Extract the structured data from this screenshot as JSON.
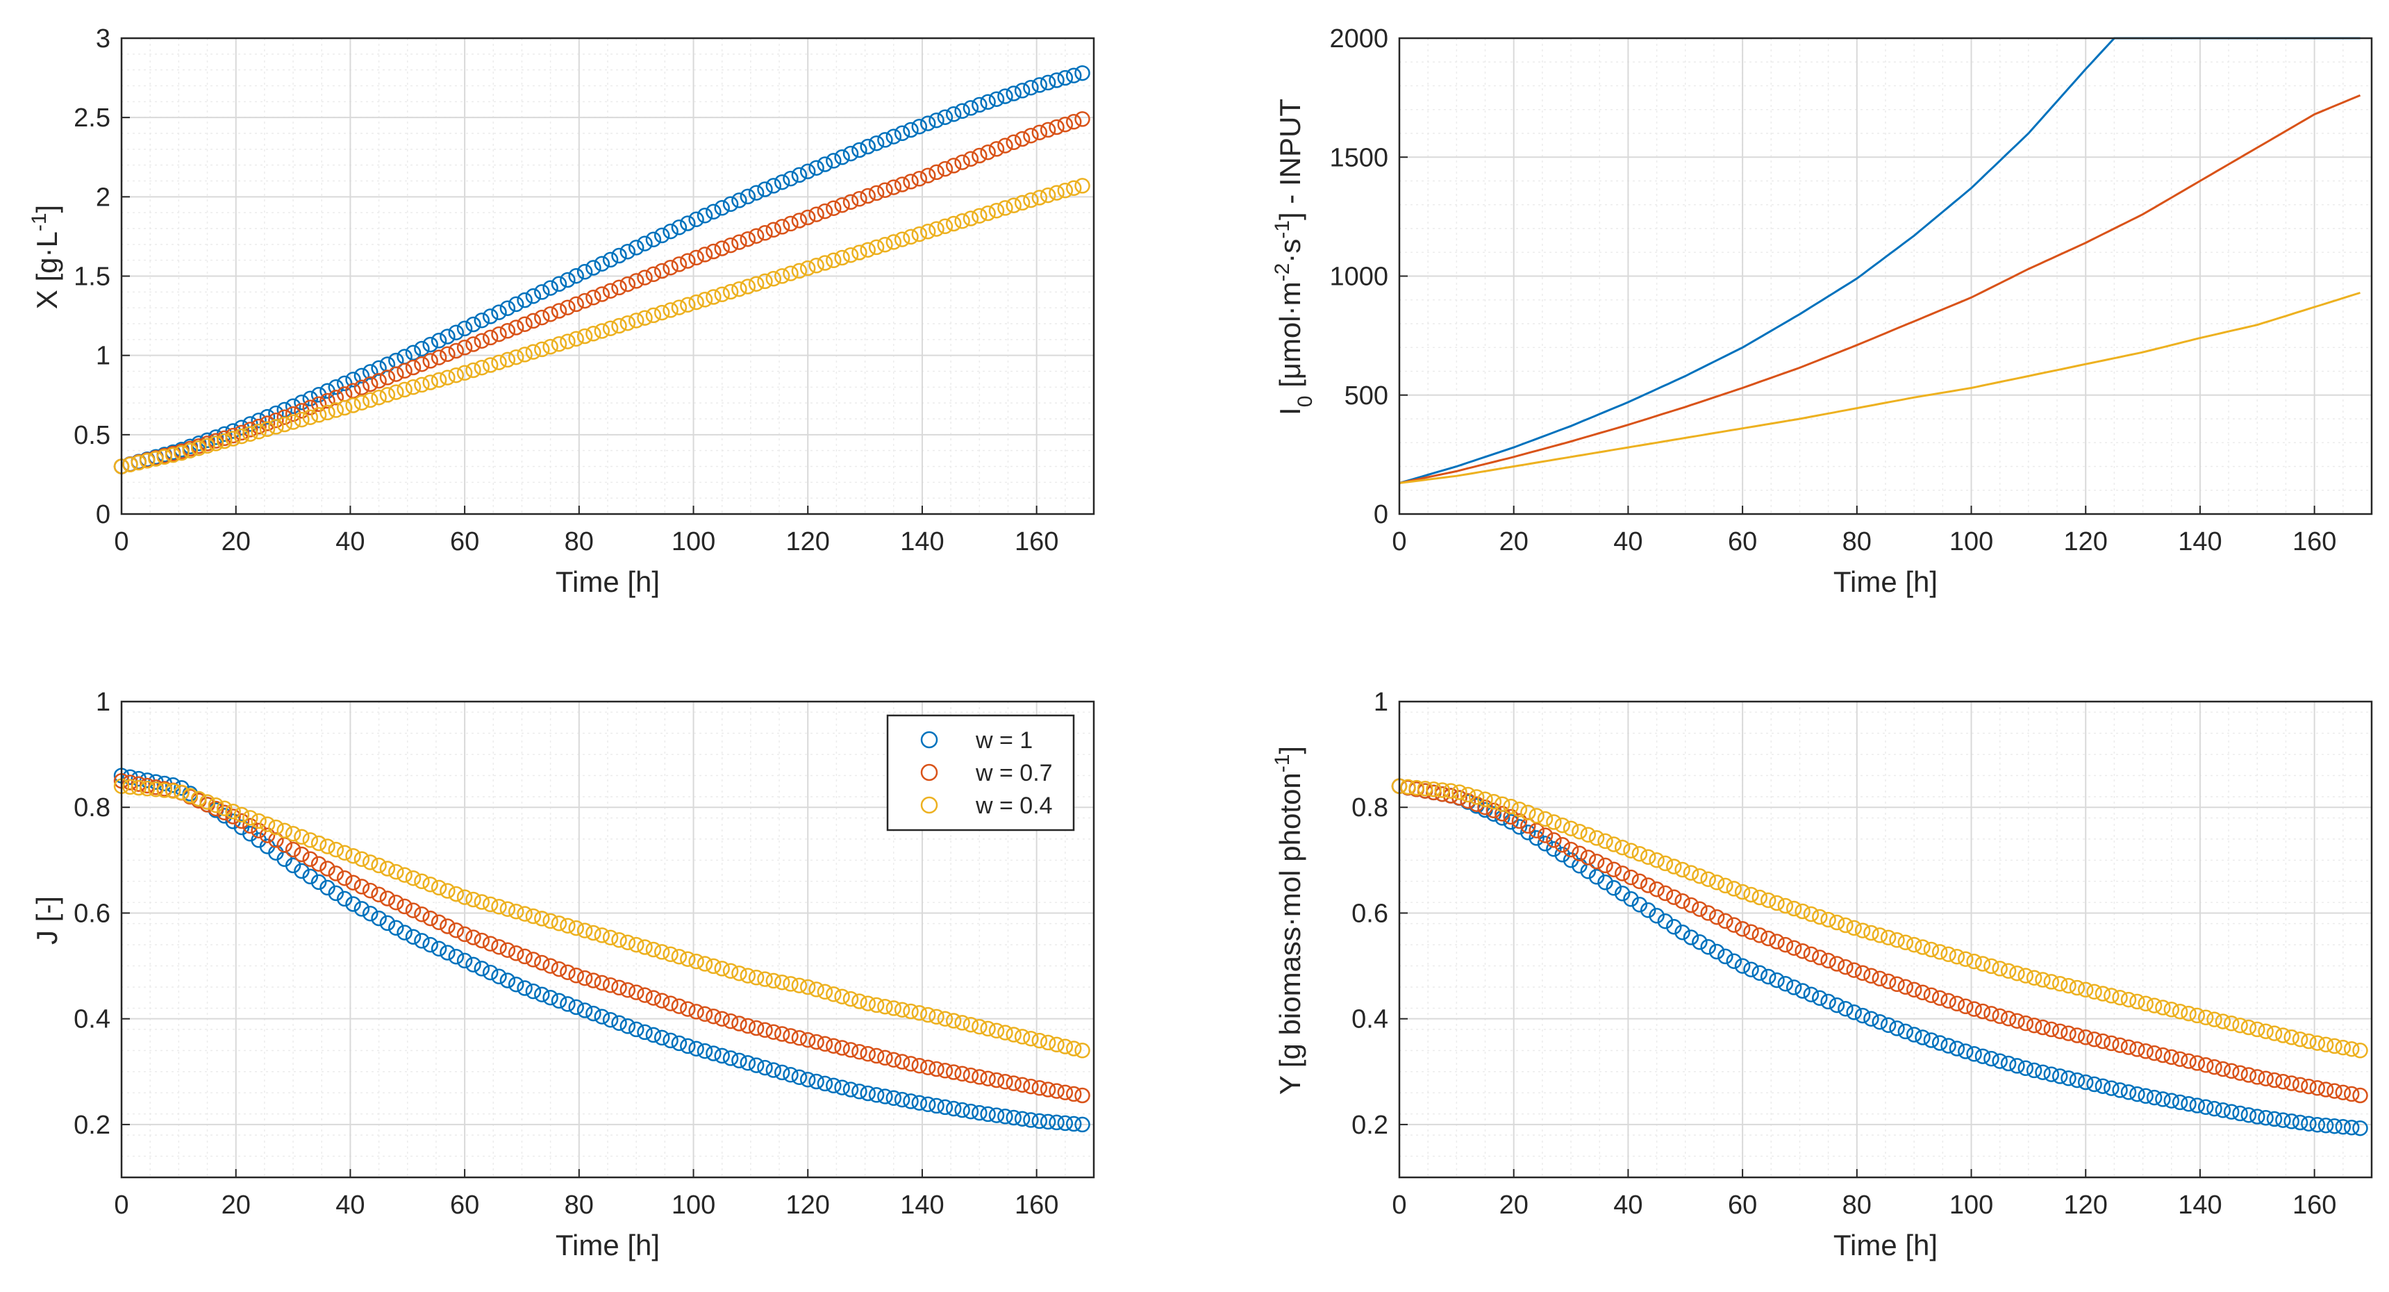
{
  "colors": {
    "w1": "#0072BD",
    "w07": "#D95319",
    "w04": "#EDB120",
    "grid_major": "#d9d9d9",
    "grid_minor": "#ececec",
    "axes": "#262626"
  },
  "legend": {
    "placement": "top-right of bottom-left panel",
    "entries": [
      "w = 1",
      "w = 0.7",
      "w = 0.4"
    ]
  },
  "chart_data": [
    {
      "type": "scatter",
      "marker": "open-circle",
      "xlabel": "Time [h]",
      "ylabel": "X [g·L⁻¹]",
      "ylabel_parts": {
        "base": "X [g·L",
        "sup": "-1",
        "tail": "]"
      },
      "xlim": [
        0,
        170
      ],
      "ylim": [
        0,
        3
      ],
      "xticks": [
        0,
        20,
        40,
        60,
        80,
        100,
        120,
        140,
        160
      ],
      "yticks": [
        0,
        0.5,
        1,
        1.5,
        2,
        2.5,
        3
      ],
      "ytick_labels": [
        "0",
        "0.5",
        "1",
        "1.5",
        "2",
        "2.5",
        "3"
      ],
      "grid": true,
      "minor_grid": true,
      "x": [
        0,
        10,
        20,
        30,
        40,
        50,
        60,
        70,
        80,
        90,
        100,
        110,
        120,
        130,
        140,
        150,
        160,
        168
      ],
      "series": [
        {
          "legend": "w = 1",
          "values": [
            0.3,
            0.4,
            0.53,
            0.68,
            0.84,
            1.0,
            1.17,
            1.34,
            1.51,
            1.68,
            1.85,
            2.01,
            2.16,
            2.31,
            2.45,
            2.58,
            2.7,
            2.78
          ]
        },
        {
          "legend": "w = 0.7",
          "values": [
            0.3,
            0.39,
            0.5,
            0.63,
            0.77,
            0.91,
            1.05,
            1.19,
            1.33,
            1.47,
            1.61,
            1.74,
            1.87,
            2.0,
            2.12,
            2.26,
            2.4,
            2.49
          ]
        },
        {
          "legend": "w = 0.4",
          "values": [
            0.3,
            0.38,
            0.48,
            0.58,
            0.68,
            0.79,
            0.89,
            1.0,
            1.11,
            1.22,
            1.33,
            1.44,
            1.55,
            1.66,
            1.77,
            1.88,
            1.99,
            2.07
          ]
        }
      ]
    },
    {
      "type": "line",
      "xlabel": "Time [h]",
      "ylabel": "I₀ [μmol·m⁻²·s⁻¹] - INPUT",
      "ylabel_parts": {
        "a": "I",
        "sub0": "0",
        "b": " [μmol·m",
        "sup1": "-2",
        "c": "·s",
        "sup2": "-1",
        "d": "] - INPUT"
      },
      "xlim": [
        0,
        170
      ],
      "ylim": [
        0,
        2000
      ],
      "xticks": [
        0,
        20,
        40,
        60,
        80,
        100,
        120,
        140,
        160
      ],
      "yticks": [
        0,
        500,
        1000,
        1500,
        2000
      ],
      "ytick_labels": [
        "0",
        "500",
        "1000",
        "1500",
        "2000"
      ],
      "grid": true,
      "minor_grid": true,
      "x": [
        0,
        10,
        20,
        30,
        40,
        50,
        60,
        70,
        80,
        90,
        100,
        110,
        120,
        125,
        130,
        140,
        150,
        160,
        168
      ],
      "series": [
        {
          "legend": "w = 1",
          "values": [
            130,
            200,
            280,
            370,
            470,
            580,
            700,
            840,
            990,
            1170,
            1370,
            1600,
            1870,
            2000,
            2000,
            2000,
            2000,
            2000,
            2000
          ]
        },
        {
          "legend": "w = 0.7",
          "values": [
            130,
            180,
            240,
            305,
            375,
            450,
            530,
            615,
            710,
            810,
            910,
            1030,
            1140,
            1200,
            1260,
            1400,
            1540,
            1680,
            1760
          ]
        },
        {
          "legend": "w = 0.4",
          "values": [
            130,
            160,
            200,
            240,
            280,
            320,
            360,
            400,
            445,
            490,
            530,
            580,
            630,
            655,
            680,
            740,
            795,
            870,
            930
          ]
        }
      ]
    },
    {
      "type": "scatter",
      "marker": "open-circle",
      "xlabel": "Time [h]",
      "ylabel": "J [-]",
      "xlim": [
        0,
        170
      ],
      "ylim": [
        0.1,
        1
      ],
      "xticks": [
        0,
        20,
        40,
        60,
        80,
        100,
        120,
        140,
        160
      ],
      "yticks": [
        0.2,
        0.4,
        0.6,
        0.8,
        1
      ],
      "ytick_labels": [
        "0.2",
        "0.4",
        "0.6",
        "0.8",
        "1"
      ],
      "grid": true,
      "minor_grid": true,
      "legend_shown": true,
      "x": [
        0,
        10,
        20,
        30,
        40,
        50,
        60,
        70,
        80,
        90,
        100,
        110,
        120,
        130,
        140,
        150,
        160,
        168
      ],
      "series": [
        {
          "legend": "w = 1",
          "values": [
            0.86,
            0.84,
            0.77,
            0.69,
            0.62,
            0.56,
            0.51,
            0.46,
            0.42,
            0.38,
            0.345,
            0.315,
            0.285,
            0.26,
            0.24,
            0.222,
            0.207,
            0.2
          ]
        },
        {
          "legend": "w = 0.7",
          "values": [
            0.85,
            0.83,
            0.78,
            0.72,
            0.66,
            0.61,
            0.56,
            0.52,
            0.48,
            0.45,
            0.415,
            0.385,
            0.36,
            0.335,
            0.31,
            0.29,
            0.27,
            0.255
          ]
        },
        {
          "legend": "w = 0.4",
          "values": [
            0.84,
            0.83,
            0.79,
            0.75,
            0.71,
            0.67,
            0.63,
            0.6,
            0.57,
            0.54,
            0.51,
            0.48,
            0.46,
            0.43,
            0.41,
            0.385,
            0.36,
            0.34
          ]
        }
      ]
    },
    {
      "type": "scatter",
      "marker": "open-circle",
      "xlabel": "Time [h]",
      "ylabel": "Y [g biomass·mol photon⁻¹]",
      "ylabel_parts": {
        "base": "Y [g biomass·mol photon",
        "sup": "-1",
        "tail": "]"
      },
      "xlim": [
        0,
        170
      ],
      "ylim": [
        0.1,
        1
      ],
      "xticks": [
        0,
        20,
        40,
        60,
        80,
        100,
        120,
        140,
        160
      ],
      "yticks": [
        0.2,
        0.4,
        0.6,
        0.8,
        1
      ],
      "ytick_labels": [
        "0.2",
        "0.4",
        "0.6",
        "0.8",
        "1"
      ],
      "grid": true,
      "minor_grid": true,
      "x": [
        0,
        10,
        20,
        30,
        40,
        50,
        60,
        70,
        80,
        90,
        100,
        110,
        120,
        130,
        140,
        150,
        160,
        168
      ],
      "series": [
        {
          "legend": "w = 1",
          "values": [
            0.84,
            0.82,
            0.77,
            0.7,
            0.63,
            0.56,
            0.5,
            0.455,
            0.41,
            0.37,
            0.335,
            0.305,
            0.28,
            0.255,
            0.235,
            0.215,
            0.2,
            0.193
          ]
        },
        {
          "legend": "w = 0.7",
          "values": [
            0.84,
            0.82,
            0.78,
            0.72,
            0.67,
            0.62,
            0.57,
            0.53,
            0.49,
            0.455,
            0.42,
            0.39,
            0.365,
            0.34,
            0.315,
            0.29,
            0.27,
            0.255
          ]
        },
        {
          "legend": "w = 0.4",
          "values": [
            0.84,
            0.83,
            0.8,
            0.76,
            0.72,
            0.68,
            0.64,
            0.605,
            0.57,
            0.54,
            0.51,
            0.48,
            0.455,
            0.43,
            0.405,
            0.38,
            0.355,
            0.34
          ]
        }
      ]
    }
  ]
}
